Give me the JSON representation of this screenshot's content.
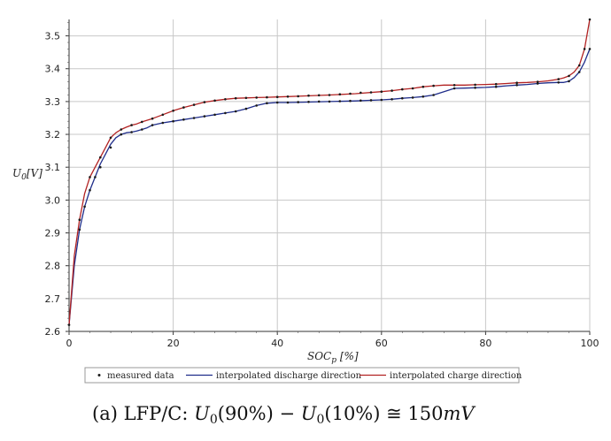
{
  "chart_data": {
    "type": "line",
    "xlabel": "SOC_p [%]",
    "ylabel": "U_0 [V]",
    "xlim": [
      0,
      100
    ],
    "ylim": [
      2.6,
      3.55
    ],
    "xticks": [
      0,
      20,
      40,
      60,
      80,
      100
    ],
    "yticks": [
      2.6,
      2.7,
      2.8,
      2.9,
      3.0,
      3.1,
      3.2,
      3.3,
      3.4,
      3.5
    ],
    "grid": true,
    "legend_position": "bottom",
    "legend": {
      "measured": "measured data",
      "discharge": "interpolated discharge direction",
      "charge": "interpolated charge direction"
    },
    "series": [
      {
        "name": "interpolated discharge direction",
        "color": "#1f2d8a",
        "x": [
          0,
          1,
          2,
          3,
          4,
          5,
          6,
          7,
          8,
          9,
          10,
          11,
          12,
          13,
          14,
          15,
          16,
          18,
          20,
          22,
          24,
          26,
          28,
          30,
          32,
          34,
          36,
          38,
          40,
          42,
          45,
          50,
          55,
          60,
          62,
          64,
          66,
          68,
          70,
          72,
          74,
          76,
          78,
          80,
          82,
          84,
          86,
          88,
          90,
          92,
          94,
          95,
          96,
          97,
          98,
          99,
          100
        ],
        "values": [
          2.62,
          2.8,
          2.91,
          2.98,
          3.03,
          3.07,
          3.11,
          3.14,
          3.17,
          3.19,
          3.2,
          3.205,
          3.207,
          3.21,
          3.215,
          3.22,
          3.228,
          3.235,
          3.24,
          3.245,
          3.25,
          3.255,
          3.26,
          3.265,
          3.27,
          3.278,
          3.288,
          3.295,
          3.297,
          3.297,
          3.298,
          3.3,
          3.302,
          3.305,
          3.307,
          3.31,
          3.312,
          3.315,
          3.32,
          3.33,
          3.34,
          3.341,
          3.342,
          3.343,
          3.345,
          3.348,
          3.35,
          3.352,
          3.355,
          3.357,
          3.358,
          3.358,
          3.362,
          3.373,
          3.39,
          3.42,
          3.46
        ]
      },
      {
        "name": "interpolated charge direction",
        "color": "#b22222",
        "x": [
          0,
          1,
          2,
          3,
          4,
          5,
          6,
          7,
          8,
          9,
          10,
          11,
          12,
          13,
          14,
          16,
          18,
          20,
          22,
          24,
          26,
          28,
          30,
          32,
          34,
          36,
          38,
          40,
          42,
          45,
          50,
          55,
          60,
          62,
          64,
          66,
          68,
          70,
          72,
          74,
          76,
          78,
          80,
          82,
          84,
          86,
          88,
          90,
          92,
          94,
          95,
          96,
          97,
          98,
          99,
          100
        ],
        "values": [
          2.62,
          2.83,
          2.94,
          3.02,
          3.07,
          3.1,
          3.13,
          3.16,
          3.19,
          3.205,
          3.215,
          3.222,
          3.228,
          3.232,
          3.238,
          3.248,
          3.26,
          3.272,
          3.282,
          3.29,
          3.298,
          3.303,
          3.307,
          3.31,
          3.311,
          3.312,
          3.313,
          3.314,
          3.315,
          3.317,
          3.32,
          3.324,
          3.33,
          3.333,
          3.337,
          3.34,
          3.345,
          3.348,
          3.35,
          3.35,
          3.35,
          3.351,
          3.352,
          3.353,
          3.355,
          3.357,
          3.358,
          3.36,
          3.363,
          3.368,
          3.372,
          3.378,
          3.39,
          3.41,
          3.46,
          3.55
        ]
      },
      {
        "name": "measured data",
        "color": "#1a1a1a",
        "x": [
          0,
          2,
          3,
          4,
          5,
          6,
          8,
          10,
          12,
          14,
          16,
          18,
          20,
          22,
          24,
          26,
          28,
          30,
          32,
          34,
          36,
          38,
          40,
          42,
          44,
          46,
          48,
          50,
          52,
          54,
          56,
          58,
          60,
          62,
          64,
          66,
          68,
          70,
          74,
          78,
          82,
          86,
          90,
          94,
          96,
          98,
          100
        ],
        "values": [
          2.62,
          2.91,
          2.98,
          3.03,
          3.07,
          3.1,
          3.16,
          3.2,
          3.207,
          3.215,
          3.228,
          3.235,
          3.24,
          3.245,
          3.25,
          3.255,
          3.26,
          3.265,
          3.27,
          3.278,
          3.288,
          3.295,
          3.297,
          3.297,
          3.298,
          3.299,
          3.3,
          3.3,
          3.301,
          3.302,
          3.303,
          3.304,
          3.305,
          3.307,
          3.31,
          3.312,
          3.315,
          3.32,
          3.34,
          3.342,
          3.345,
          3.35,
          3.355,
          3.358,
          3.362,
          3.39,
          3.46
        ]
      },
      {
        "name": "measured data",
        "color": "#1a1a1a",
        "x": [
          2,
          4,
          6,
          8,
          10,
          12,
          14,
          16,
          18,
          20,
          22,
          24,
          26,
          28,
          30,
          32,
          34,
          36,
          38,
          40,
          42,
          44,
          46,
          48,
          50,
          52,
          54,
          56,
          58,
          60,
          62,
          64,
          66,
          68,
          70,
          74,
          78,
          82,
          86,
          90,
          94,
          96,
          98,
          99,
          100
        ],
        "values": [
          2.94,
          3.07,
          3.13,
          3.19,
          3.215,
          3.228,
          3.238,
          3.248,
          3.26,
          3.272,
          3.282,
          3.29,
          3.298,
          3.303,
          3.307,
          3.31,
          3.311,
          3.312,
          3.313,
          3.314,
          3.315,
          3.316,
          3.318,
          3.319,
          3.32,
          3.322,
          3.324,
          3.327,
          3.328,
          3.33,
          3.333,
          3.337,
          3.34,
          3.345,
          3.348,
          3.35,
          3.351,
          3.353,
          3.357,
          3.36,
          3.368,
          3.378,
          3.41,
          3.46,
          3.55
        ]
      }
    ]
  },
  "caption": "(a) LFP/C: U0(90%) − U0(10%) ≅ 150mV",
  "caption_parts": {
    "prefix": "(a) LFP/C: ",
    "u1": "U",
    "sub1": "0",
    "arg1": "(90%) − ",
    "u2": "U",
    "sub2": "0",
    "arg2": "(10%) ≅ 150",
    "unit": "mV"
  },
  "axis_text": {
    "ylabel_main": "U",
    "ylabel_sub": "0",
    "ylabel_unit": "[V]",
    "xlabel_main": "SOC",
    "xlabel_sub": "p",
    "xlabel_unit": " [%]"
  }
}
